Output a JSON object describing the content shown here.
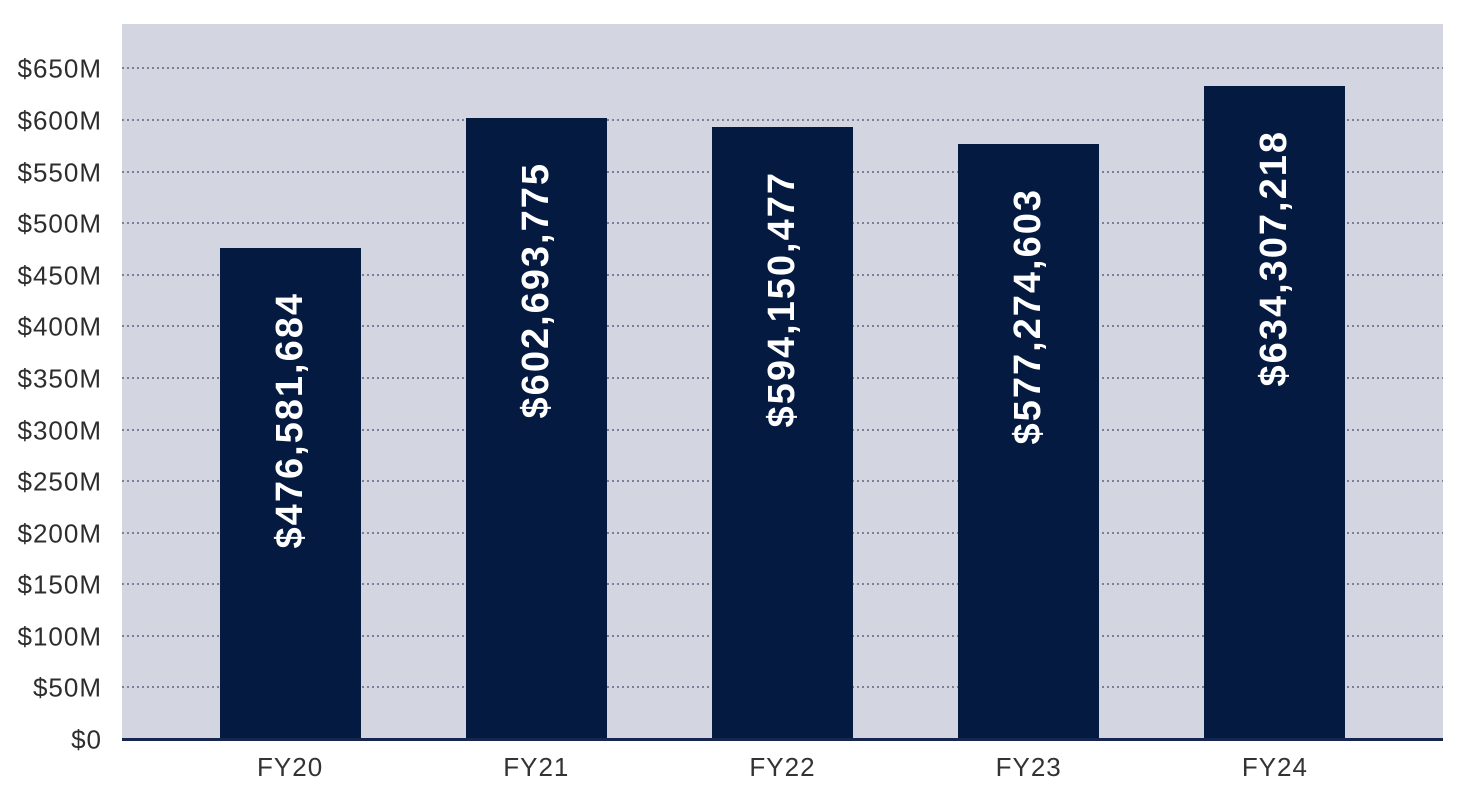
{
  "chart_data": {
    "type": "bar",
    "title": "",
    "xlabel": "",
    "ylabel": "",
    "categories": [
      "FY20",
      "FY21",
      "FY22",
      "FY23",
      "FY24"
    ],
    "values": [
      476581684,
      602693775,
      594150477,
      577274603,
      634307218
    ],
    "bar_labels": [
      "$476,581,684",
      "$602,693,775",
      "$594,150,477",
      "$577,274,603",
      "$634,307,218"
    ],
    "y_ticks": [
      {
        "value": 0,
        "label": "$0"
      },
      {
        "value": 50000000,
        "label": "$50M"
      },
      {
        "value": 100000000,
        "label": "$100M"
      },
      {
        "value": 150000000,
        "label": "$150M"
      },
      {
        "value": 200000000,
        "label": "$200M"
      },
      {
        "value": 250000000,
        "label": "$250M"
      },
      {
        "value": 300000000,
        "label": "$300M"
      },
      {
        "value": 350000000,
        "label": "$350M"
      },
      {
        "value": 400000000,
        "label": "$400M"
      },
      {
        "value": 450000000,
        "label": "$450M"
      },
      {
        "value": 500000000,
        "label": "$500M"
      },
      {
        "value": 550000000,
        "label": "$550M"
      },
      {
        "value": 600000000,
        "label": "$600M"
      },
      {
        "value": 650000000,
        "label": "$650M"
      }
    ],
    "ylim": [
      0,
      694000000
    ],
    "axis_max": 694000000,
    "grid": "horizontal-dotted",
    "legend": "none",
    "colors": {
      "bar": "#051a41",
      "plot_background": "#d3d5e0",
      "page_background": "#ffffff",
      "grid_dots": "#5d6380",
      "baseline": "#17264f",
      "y_tick_text": "#2d2d2d",
      "x_label_text": "#333333",
      "bar_label_text": "#ffffff"
    }
  }
}
